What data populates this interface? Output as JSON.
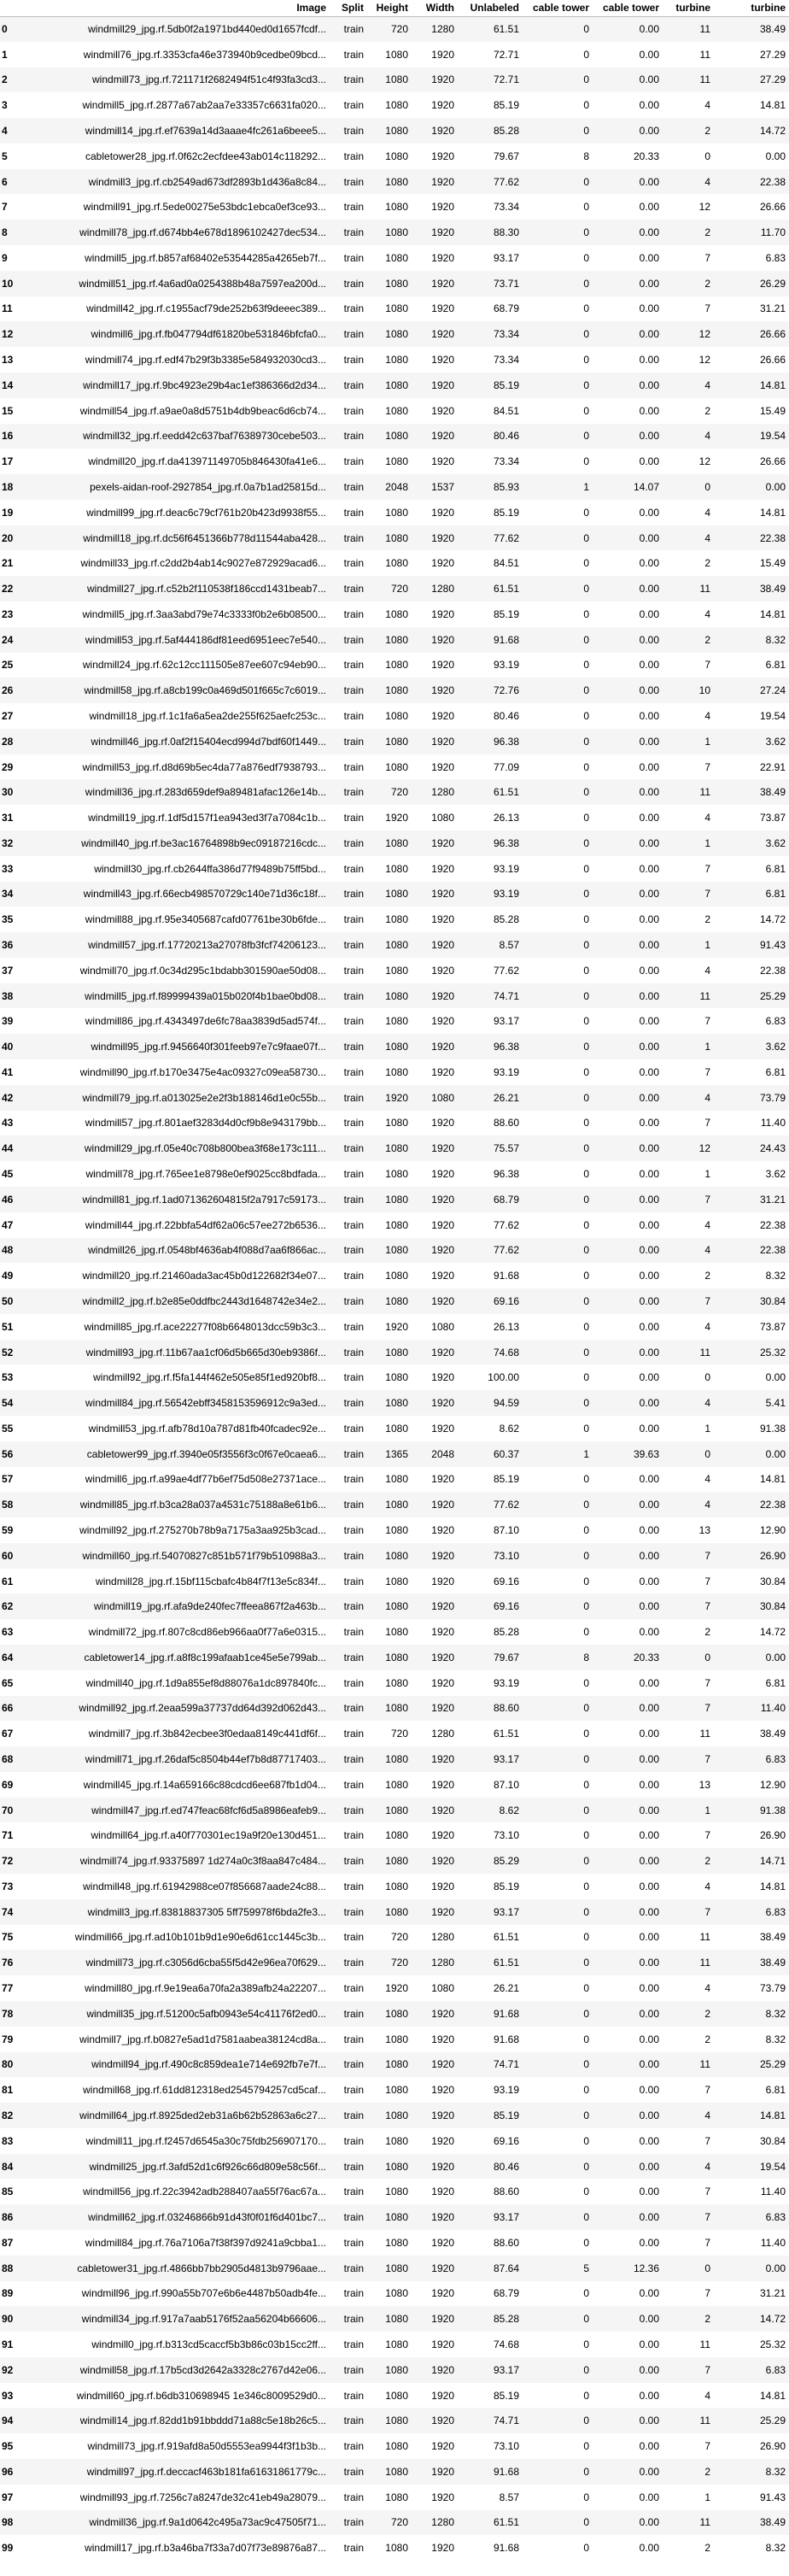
{
  "columns": [
    "",
    "Image",
    "Split",
    "Height",
    "Width",
    "Unlabeled",
    "cable tower",
    "cable tower",
    "turbine",
    "turbine"
  ],
  "rows": [
    [
      "0",
      "windmill29_jpg.rf.5db0f2a1971bd440ed0d1657fcdf...",
      "train",
      "720",
      "1280",
      "61.51",
      "0",
      "0.00",
      "11",
      "38.49"
    ],
    [
      "1",
      "windmill76_jpg.rf.3353cfa46e373940b9cedbe09bcd...",
      "train",
      "1080",
      "1920",
      "72.71",
      "0",
      "0.00",
      "11",
      "27.29"
    ],
    [
      "2",
      "windmill73_jpg.rf.721171f2682494f51c4f93fa3cd3...",
      "train",
      "1080",
      "1920",
      "72.71",
      "0",
      "0.00",
      "11",
      "27.29"
    ],
    [
      "3",
      "windmill5_jpg.rf.2877a67ab2aa7e33357c6631fa020...",
      "train",
      "1080",
      "1920",
      "85.19",
      "0",
      "0.00",
      "4",
      "14.81"
    ],
    [
      "4",
      "windmill14_jpg.rf.ef7639a14d3aaae4fc261a6beee5...",
      "train",
      "1080",
      "1920",
      "85.28",
      "0",
      "0.00",
      "2",
      "14.72"
    ],
    [
      "5",
      "cabletower28_jpg.rf.0f62c2ecfdee43ab014c118292...",
      "train",
      "1080",
      "1920",
      "79.67",
      "8",
      "20.33",
      "0",
      "0.00"
    ],
    [
      "6",
      "windmill3_jpg.rf.cb2549ad673df2893b1d436a8c84...",
      "train",
      "1080",
      "1920",
      "77.62",
      "0",
      "0.00",
      "4",
      "22.38"
    ],
    [
      "7",
      "windmill91_jpg.rf.5ede00275e53bdc1ebca0ef3ce93...",
      "train",
      "1080",
      "1920",
      "73.34",
      "0",
      "0.00",
      "12",
      "26.66"
    ],
    [
      "8",
      "windmill78_jpg.rf.d674bb4e678d1896102427dec534...",
      "train",
      "1080",
      "1920",
      "88.30",
      "0",
      "0.00",
      "2",
      "11.70"
    ],
    [
      "9",
      "windmill5_jpg.rf.b857af68402e53544285a4265eb7f...",
      "train",
      "1080",
      "1920",
      "93.17",
      "0",
      "0.00",
      "7",
      "6.83"
    ],
    [
      "10",
      "windmill51_jpg.rf.4a6ad0a0254388b48a7597ea200d...",
      "train",
      "1080",
      "1920",
      "73.71",
      "0",
      "0.00",
      "2",
      "26.29"
    ],
    [
      "11",
      "windmill42_jpg.rf.c1955acf79de252b63f9deeec389...",
      "train",
      "1080",
      "1920",
      "68.79",
      "0",
      "0.00",
      "7",
      "31.21"
    ],
    [
      "12",
      "windmill6_jpg.rf.fb047794df61820be531846bfcfa0...",
      "train",
      "1080",
      "1920",
      "73.34",
      "0",
      "0.00",
      "12",
      "26.66"
    ],
    [
      "13",
      "windmill74_jpg.rf.edf47b29f3b3385e584932030cd3...",
      "train",
      "1080",
      "1920",
      "73.34",
      "0",
      "0.00",
      "12",
      "26.66"
    ],
    [
      "14",
      "windmill17_jpg.rf.9bc4923e29b4ac1ef386366d2d34...",
      "train",
      "1080",
      "1920",
      "85.19",
      "0",
      "0.00",
      "4",
      "14.81"
    ],
    [
      "15",
      "windmill54_jpg.rf.a9ae0a8d5751b4db9beac6d6cb74...",
      "train",
      "1080",
      "1920",
      "84.51",
      "0",
      "0.00",
      "2",
      "15.49"
    ],
    [
      "16",
      "windmill32_jpg.rf.eedd42c637baf76389730cebe503...",
      "train",
      "1080",
      "1920",
      "80.46",
      "0",
      "0.00",
      "4",
      "19.54"
    ],
    [
      "17",
      "windmill20_jpg.rf.da413971149705b846430fa41e6...",
      "train",
      "1080",
      "1920",
      "73.34",
      "0",
      "0.00",
      "12",
      "26.66"
    ],
    [
      "18",
      "pexels-aidan-roof-2927854_jpg.rf.0a7b1ad25815d...",
      "train",
      "2048",
      "1537",
      "85.93",
      "1",
      "14.07",
      "0",
      "0.00"
    ],
    [
      "19",
      "windmill99_jpg.rf.deac6c79cf761b20b423d9938f55...",
      "train",
      "1080",
      "1920",
      "85.19",
      "0",
      "0.00",
      "4",
      "14.81"
    ],
    [
      "20",
      "windmill18_jpg.rf.dc56f6451366b778d11544aba428...",
      "train",
      "1080",
      "1920",
      "77.62",
      "0",
      "0.00",
      "4",
      "22.38"
    ],
    [
      "21",
      "windmill33_jpg.rf.c2dd2b4ab14c9027e872929acad6...",
      "train",
      "1080",
      "1920",
      "84.51",
      "0",
      "0.00",
      "2",
      "15.49"
    ],
    [
      "22",
      "windmill27_jpg.rf.c52b2f110538f186ccd1431beab7...",
      "train",
      "720",
      "1280",
      "61.51",
      "0",
      "0.00",
      "11",
      "38.49"
    ],
    [
      "23",
      "windmill5_jpg.rf.3aa3abd79e74c3333f0b2e6b08500...",
      "train",
      "1080",
      "1920",
      "85.19",
      "0",
      "0.00",
      "4",
      "14.81"
    ],
    [
      "24",
      "windmill53_jpg.rf.5af444186df81eed6951eec7e540...",
      "train",
      "1080",
      "1920",
      "91.68",
      "0",
      "0.00",
      "2",
      "8.32"
    ],
    [
      "25",
      "windmill24_jpg.rf.62c12cc111505e87ee607c94eb90...",
      "train",
      "1080",
      "1920",
      "93.19",
      "0",
      "0.00",
      "7",
      "6.81"
    ],
    [
      "26",
      "windmill58_jpg.rf.a8cb199c0a469d501f665c7c6019...",
      "train",
      "1080",
      "1920",
      "72.76",
      "0",
      "0.00",
      "10",
      "27.24"
    ],
    [
      "27",
      "windmill18_jpg.rf.1c1fa6a5ea2de255f625aefc253c...",
      "train",
      "1080",
      "1920",
      "80.46",
      "0",
      "0.00",
      "4",
      "19.54"
    ],
    [
      "28",
      "windmill46_jpg.rf.0af2f15404ecd994d7bdf60f1449...",
      "train",
      "1080",
      "1920",
      "96.38",
      "0",
      "0.00",
      "1",
      "3.62"
    ],
    [
      "29",
      "windmill53_jpg.rf.d8d69b5ec4da77a876edf7938793...",
      "train",
      "1080",
      "1920",
      "77.09",
      "0",
      "0.00",
      "7",
      "22.91"
    ],
    [
      "30",
      "windmill36_jpg.rf.283d659def9a89481afac126e14b...",
      "train",
      "720",
      "1280",
      "61.51",
      "0",
      "0.00",
      "11",
      "38.49"
    ],
    [
      "31",
      "windmill19_jpg.rf.1df5d157f1ea943ed3f7a7084c1b...",
      "train",
      "1920",
      "1080",
      "26.13",
      "0",
      "0.00",
      "4",
      "73.87"
    ],
    [
      "32",
      "windmill40_jpg.rf.be3ac16764898b9ec09187216cdc...",
      "train",
      "1080",
      "1920",
      "96.38",
      "0",
      "0.00",
      "1",
      "3.62"
    ],
    [
      "33",
      "windmill30_jpg.rf.cb2644ffa386d77f9489b75ff5bd...",
      "train",
      "1080",
      "1920",
      "93.19",
      "0",
      "0.00",
      "7",
      "6.81"
    ],
    [
      "34",
      "windmill43_jpg.rf.66ecb498570729c140e71d36c18f...",
      "train",
      "1080",
      "1920",
      "93.19",
      "0",
      "0.00",
      "7",
      "6.81"
    ],
    [
      "35",
      "windmill88_jpg.rf.95e3405687cafd07761be30b6fde...",
      "train",
      "1080",
      "1920",
      "85.28",
      "0",
      "0.00",
      "2",
      "14.72"
    ],
    [
      "36",
      "windmill57_jpg.rf.17720213a27078fb3fcf74206123...",
      "train",
      "1080",
      "1920",
      "8.57",
      "0",
      "0.00",
      "1",
      "91.43"
    ],
    [
      "37",
      "windmill70_jpg.rf.0c34d295c1bdabb301590ae50d08...",
      "train",
      "1080",
      "1920",
      "77.62",
      "0",
      "0.00",
      "4",
      "22.38"
    ],
    [
      "38",
      "windmill5_jpg.rf.f89999439a015b020f4b1bae0bd08...",
      "train",
      "1080",
      "1920",
      "74.71",
      "0",
      "0.00",
      "11",
      "25.29"
    ],
    [
      "39",
      "windmill86_jpg.rf.4343497de6fc78aa3839d5ad574f...",
      "train",
      "1080",
      "1920",
      "93.17",
      "0",
      "0.00",
      "7",
      "6.83"
    ],
    [
      "40",
      "windmill95_jpg.rf.9456640f301feeb97e7c9faae07f...",
      "train",
      "1080",
      "1920",
      "96.38",
      "0",
      "0.00",
      "1",
      "3.62"
    ],
    [
      "41",
      "windmill90_jpg.rf.b170e3475e4ac09327c09ea58730...",
      "train",
      "1080",
      "1920",
      "93.19",
      "0",
      "0.00",
      "7",
      "6.81"
    ],
    [
      "42",
      "windmill79_jpg.rf.a013025e2e2f3b188146d1e0c55b...",
      "train",
      "1920",
      "1080",
      "26.21",
      "0",
      "0.00",
      "4",
      "73.79"
    ],
    [
      "43",
      "windmill57_jpg.rf.801aef3283d4d0cf9b8e943179bb...",
      "train",
      "1080",
      "1920",
      "88.60",
      "0",
      "0.00",
      "7",
      "11.40"
    ],
    [
      "44",
      "windmill29_jpg.rf.05e40c708b800bea3f68e173c111...",
      "train",
      "1080",
      "1920",
      "75.57",
      "0",
      "0.00",
      "12",
      "24.43"
    ],
    [
      "45",
      "windmill78_jpg.rf.765ee1e8798e0ef9025cc8bdfada...",
      "train",
      "1080",
      "1920",
      "96.38",
      "0",
      "0.00",
      "1",
      "3.62"
    ],
    [
      "46",
      "windmill81_jpg.rf.1ad071362604815f2a7917c59173...",
      "train",
      "1080",
      "1920",
      "68.79",
      "0",
      "0.00",
      "7",
      "31.21"
    ],
    [
      "47",
      "windmill44_jpg.rf.22bbfa54df62a06c57ee272b6536...",
      "train",
      "1080",
      "1920",
      "77.62",
      "0",
      "0.00",
      "4",
      "22.38"
    ],
    [
      "48",
      "windmill26_jpg.rf.0548bf4636ab4f088d7aa6f866ac...",
      "train",
      "1080",
      "1920",
      "77.62",
      "0",
      "0.00",
      "4",
      "22.38"
    ],
    [
      "49",
      "windmill20_jpg.rf.21460ada3ac45b0d122682f34e07...",
      "train",
      "1080",
      "1920",
      "91.68",
      "0",
      "0.00",
      "2",
      "8.32"
    ],
    [
      "50",
      "windmill2_jpg.rf.b2e85e0ddfbc2443d1648742e34e2...",
      "train",
      "1080",
      "1920",
      "69.16",
      "0",
      "0.00",
      "7",
      "30.84"
    ],
    [
      "51",
      "windmill85_jpg.rf.ace22277f08b6648013dcc59b3c3...",
      "train",
      "1920",
      "1080",
      "26.13",
      "0",
      "0.00",
      "4",
      "73.87"
    ],
    [
      "52",
      "windmill93_jpg.rf.11b67aa1cf06d5b665d30eb9386f...",
      "train",
      "1080",
      "1920",
      "74.68",
      "0",
      "0.00",
      "11",
      "25.32"
    ],
    [
      "53",
      "windmill92_jpg.rf.f5fa144f462e505e85f1ed920bf8...",
      "train",
      "1080",
      "1920",
      "100.00",
      "0",
      "0.00",
      "0",
      "0.00"
    ],
    [
      "54",
      "windmill84_jpg.rf.56542ebff3458153596912c9a3ed...",
      "train",
      "1080",
      "1920",
      "94.59",
      "0",
      "0.00",
      "4",
      "5.41"
    ],
    [
      "55",
      "windmill53_jpg.rf.afb78d10a787d81fb40fcadec92e...",
      "train",
      "1080",
      "1920",
      "8.62",
      "0",
      "0.00",
      "1",
      "91.38"
    ],
    [
      "56",
      "cabletower99_jpg.rf.3940e05f3556f3c0f67e0caea6...",
      "train",
      "1365",
      "2048",
      "60.37",
      "1",
      "39.63",
      "0",
      "0.00"
    ],
    [
      "57",
      "windmill6_jpg.rf.a99ae4df77b6ef75d508e27371ace...",
      "train",
      "1080",
      "1920",
      "85.19",
      "0",
      "0.00",
      "4",
      "14.81"
    ],
    [
      "58",
      "windmill85_jpg.rf.b3ca28a037a4531c75188a8e61b6...",
      "train",
      "1080",
      "1920",
      "77.62",
      "0",
      "0.00",
      "4",
      "22.38"
    ],
    [
      "59",
      "windmill92_jpg.rf.275270b78b9a7175a3aa925b3cad...",
      "train",
      "1080",
      "1920",
      "87.10",
      "0",
      "0.00",
      "13",
      "12.90"
    ],
    [
      "60",
      "windmill60_jpg.rf.54070827c851b571f79b510988a3...",
      "train",
      "1080",
      "1920",
      "73.10",
      "0",
      "0.00",
      "7",
      "26.90"
    ],
    [
      "61",
      "windmill28_jpg.rf.15bf115cbafc4b84f7f13e5c834f...",
      "train",
      "1080",
      "1920",
      "69.16",
      "0",
      "0.00",
      "7",
      "30.84"
    ],
    [
      "62",
      "windmill19_jpg.rf.afa9de240fec7ffeea867f2a463b...",
      "train",
      "1080",
      "1920",
      "69.16",
      "0",
      "0.00",
      "7",
      "30.84"
    ],
    [
      "63",
      "windmill72_jpg.rf.807c8cd86eb966aa0f77a6e0315...",
      "train",
      "1080",
      "1920",
      "85.28",
      "0",
      "0.00",
      "2",
      "14.72"
    ],
    [
      "64",
      "cabletower14_jpg.rf.a8f8c199afaab1ce45e5e799ab...",
      "train",
      "1080",
      "1920",
      "79.67",
      "8",
      "20.33",
      "0",
      "0.00"
    ],
    [
      "65",
      "windmill40_jpg.rf.1d9a855ef8d88076a1dc897840fc...",
      "train",
      "1080",
      "1920",
      "93.19",
      "0",
      "0.00",
      "7",
      "6.81"
    ],
    [
      "66",
      "windmill92_jpg.rf.2eaa599a37737dd64d392d062d43...",
      "train",
      "1080",
      "1920",
      "88.60",
      "0",
      "0.00",
      "7",
      "11.40"
    ],
    [
      "67",
      "windmill7_jpg.rf.3b842ecbee3f0edaa8149c441df6f...",
      "train",
      "720",
      "1280",
      "61.51",
      "0",
      "0.00",
      "11",
      "38.49"
    ],
    [
      "68",
      "windmill71_jpg.rf.26daf5c8504b44ef7b8d87717403...",
      "train",
      "1080",
      "1920",
      "93.17",
      "0",
      "0.00",
      "7",
      "6.83"
    ],
    [
      "69",
      "windmill45_jpg.rf.14a659166c88cdcd6ee687fb1d04...",
      "train",
      "1080",
      "1920",
      "87.10",
      "0",
      "0.00",
      "13",
      "12.90"
    ],
    [
      "70",
      "windmill47_jpg.rf.ed747feac68fcf6d5a8986eafeb9...",
      "train",
      "1080",
      "1920",
      "8.62",
      "0",
      "0.00",
      "1",
      "91.38"
    ],
    [
      "71",
      "windmill64_jpg.rf.a40f770301ec19a9f20e130d451...",
      "train",
      "1080",
      "1920",
      "73.10",
      "0",
      "0.00",
      "7",
      "26.90"
    ],
    [
      "72",
      "windmill74_jpg.rf.93375897 1d274a0c3f8aa847c484...",
      "train",
      "1080",
      "1920",
      "85.29",
      "0",
      "0.00",
      "2",
      "14.71"
    ],
    [
      "73",
      "windmill48_jpg.rf.61942988ce07f856687aade24c88...",
      "train",
      "1080",
      "1920",
      "85.19",
      "0",
      "0.00",
      "4",
      "14.81"
    ],
    [
      "74",
      "windmill3_jpg.rf.83818837305 5ff759978f6bda2fe3...",
      "train",
      "1080",
      "1920",
      "93.17",
      "0",
      "0.00",
      "7",
      "6.83"
    ],
    [
      "75",
      "windmill66_jpg.rf.ad10b101b9d1e90e6d61cc1445c3b...",
      "train",
      "720",
      "1280",
      "61.51",
      "0",
      "0.00",
      "11",
      "38.49"
    ],
    [
      "76",
      "windmill73_jpg.rf.c3056d6cba55f5d42e96ea70f629...",
      "train",
      "720",
      "1280",
      "61.51",
      "0",
      "0.00",
      "11",
      "38.49"
    ],
    [
      "77",
      "windmill80_jpg.rf.9e19ea6a70fa2a389afb24a22207...",
      "train",
      "1920",
      "1080",
      "26.21",
      "0",
      "0.00",
      "4",
      "73.79"
    ],
    [
      "78",
      "windmill35_jpg.rf.51200c5afb0943e54c41176f2ed0...",
      "train",
      "1080",
      "1920",
      "91.68",
      "0",
      "0.00",
      "2",
      "8.32"
    ],
    [
      "79",
      "windmill7_jpg.rf.b0827e5ad1d7581aabea38124cd8a...",
      "train",
      "1080",
      "1920",
      "91.68",
      "0",
      "0.00",
      "2",
      "8.32"
    ],
    [
      "80",
      "windmill94_jpg.rf.490c8c859dea1e714e692fb7e7f...",
      "train",
      "1080",
      "1920",
      "74.71",
      "0",
      "0.00",
      "11",
      "25.29"
    ],
    [
      "81",
      "windmill68_jpg.rf.61dd812318ed2545794257cd5caf...",
      "train",
      "1080",
      "1920",
      "93.19",
      "0",
      "0.00",
      "7",
      "6.81"
    ],
    [
      "82",
      "windmill64_jpg.rf.8925ded2eb31a6b62b52863a6c27...",
      "train",
      "1080",
      "1920",
      "85.19",
      "0",
      "0.00",
      "4",
      "14.81"
    ],
    [
      "83",
      "windmill11_jpg.rf.f2457d6545a30c75fdb256907170...",
      "train",
      "1080",
      "1920",
      "69.16",
      "0",
      "0.00",
      "7",
      "30.84"
    ],
    [
      "84",
      "windmill25_jpg.rf.3afd52d1c6f926c66d809e58c56f...",
      "train",
      "1080",
      "1920",
      "80.46",
      "0",
      "0.00",
      "4",
      "19.54"
    ],
    [
      "85",
      "windmill56_jpg.rf.22c3942adb288407aa55f76ac67a...",
      "train",
      "1080",
      "1920",
      "88.60",
      "0",
      "0.00",
      "7",
      "11.40"
    ],
    [
      "86",
      "windmill62_jpg.rf.03246866b91d43f0f01f6d401bc7...",
      "train",
      "1080",
      "1920",
      "93.17",
      "0",
      "0.00",
      "7",
      "6.83"
    ],
    [
      "87",
      "windmill84_jpg.rf.76a7106a7f38f397d9241a9cbba1...",
      "train",
      "1080",
      "1920",
      "88.60",
      "0",
      "0.00",
      "7",
      "11.40"
    ],
    [
      "88",
      "cabletower31_jpg.rf.4866bb7bb2905d4813b9796aae...",
      "train",
      "1080",
      "1920",
      "87.64",
      "5",
      "12.36",
      "0",
      "0.00"
    ],
    [
      "89",
      "windmill96_jpg.rf.990a55b707e6b6e4487b50adb4fe...",
      "train",
      "1080",
      "1920",
      "68.79",
      "0",
      "0.00",
      "7",
      "31.21"
    ],
    [
      "90",
      "windmill34_jpg.rf.917a7aab5176f52aa56204b66606...",
      "train",
      "1080",
      "1920",
      "85.28",
      "0",
      "0.00",
      "2",
      "14.72"
    ],
    [
      "91",
      "windmill0_jpg.rf.b313cd5caccf5b3b86c03b15cc2ff...",
      "train",
      "1080",
      "1920",
      "74.68",
      "0",
      "0.00",
      "11",
      "25.32"
    ],
    [
      "92",
      "windmill58_jpg.rf.17b5cd3d2642a3328c2767d42e06...",
      "train",
      "1080",
      "1920",
      "93.17",
      "0",
      "0.00",
      "7",
      "6.83"
    ],
    [
      "93",
      "windmill60_jpg.rf.b6db310698945 1e346c8009529d0...",
      "train",
      "1080",
      "1920",
      "85.19",
      "0",
      "0.00",
      "4",
      "14.81"
    ],
    [
      "94",
      "windmill14_jpg.rf.82dd1b91bbddd71a88c5e18b26c5...",
      "train",
      "1080",
      "1920",
      "74.71",
      "0",
      "0.00",
      "11",
      "25.29"
    ],
    [
      "95",
      "windmill73_jpg.rf.919afd8a50d5553ea9944f3f1b3b...",
      "train",
      "1080",
      "1920",
      "73.10",
      "0",
      "0.00",
      "7",
      "26.90"
    ],
    [
      "96",
      "windmill97_jpg.rf.deccacf463b181fa61631861779c...",
      "train",
      "1080",
      "1920",
      "91.68",
      "0",
      "0.00",
      "2",
      "8.32"
    ],
    [
      "97",
      "windmill93_jpg.rf.7256c7a8247de32c41eb49a28079...",
      "train",
      "1080",
      "1920",
      "8.57",
      "0",
      "0.00",
      "1",
      "91.43"
    ],
    [
      "98",
      "windmill36_jpg.rf.9a1d0642c495a73ac9c47505f71...",
      "train",
      "720",
      "1280",
      "61.51",
      "0",
      "0.00",
      "11",
      "38.49"
    ],
    [
      "99",
      "windmill17_jpg.rf.b3a46ba7f33a7d07f73e89876a87...",
      "train",
      "1080",
      "1920",
      "91.68",
      "0",
      "0.00",
      "2",
      "8.32"
    ]
  ]
}
